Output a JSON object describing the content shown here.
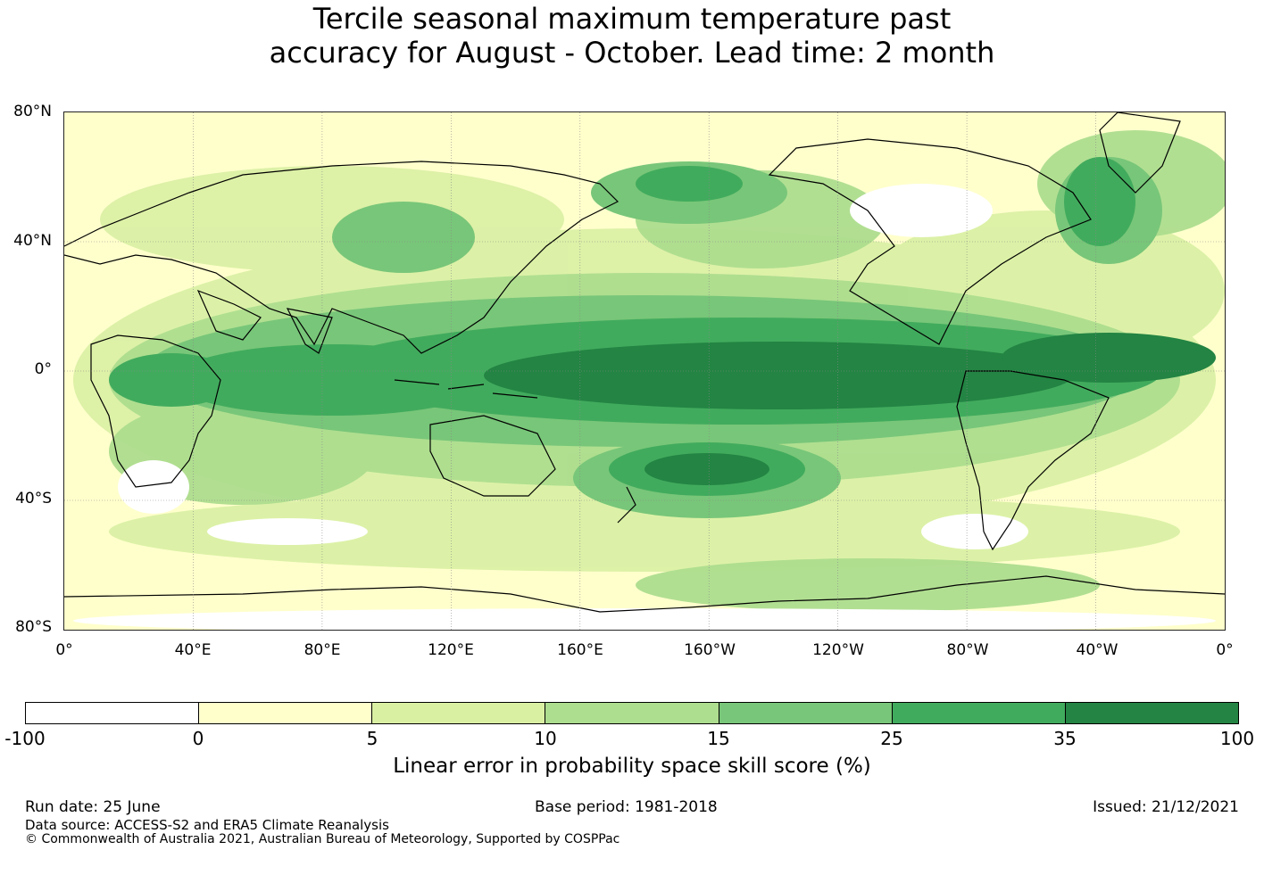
{
  "title_line1": "Tercile seasonal maximum temperature past",
  "title_line2": "accuracy for August - October. Lead time: 2 month",
  "map": {
    "projection": "equirectangular",
    "lon_range": [
      0,
      360
    ],
    "lat_range": [
      -80,
      80
    ],
    "lat_labels": [
      "80°N",
      "40°N",
      "0°",
      "40°S",
      "80°S"
    ],
    "lon_labels": [
      "0°",
      "40°E",
      "80°E",
      "120°E",
      "160°E",
      "160°W",
      "120°W",
      "80°W",
      "40°W",
      "0°"
    ],
    "gridlines": true
  },
  "colorbar": {
    "ticks": [
      "-100",
      "0",
      "5",
      "10",
      "15",
      "25",
      "35",
      "100"
    ],
    "colors": [
      "#ffffff",
      "#ffffcc",
      "#d9f0a3",
      "#addd8e",
      "#78c679",
      "#41ab5d",
      "#238443"
    ],
    "label": "Linear error in probability space skill score (%)"
  },
  "footer": {
    "run_date": "Run date: 25 June",
    "base_period": "Base period: 1981-2018",
    "issued": "Issued: 21/12/2021",
    "data_source": "Data source: ACCESS-S2 and ERA5 Climate Reanalysis",
    "copyright": "© Commonwealth of Australia 2021, Australian Bureau of Meteorology, Supported by COSPPac"
  }
}
